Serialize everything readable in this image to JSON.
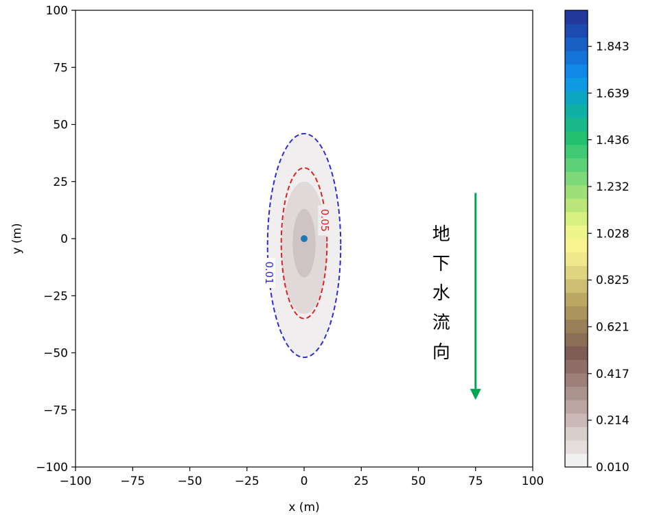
{
  "chart_data": {
    "type": "contour",
    "xlabel": "x (m)",
    "ylabel": "y (m)",
    "xlim": [
      -100,
      100
    ],
    "ylim": [
      -100,
      100
    ],
    "xticks": [
      -100,
      -75,
      -50,
      -25,
      0,
      25,
      50,
      75,
      100
    ],
    "yticks": [
      -100,
      -75,
      -50,
      -25,
      0,
      25,
      50,
      75,
      100
    ],
    "source_point": {
      "x": 0,
      "y": 0,
      "color": "#1f77b4"
    },
    "filled_levels": [
      {
        "x_halfwidth": 16,
        "y_top": 46,
        "y_bottom": -52,
        "color": "#f0eeee"
      },
      {
        "x_halfwidth": 10,
        "y_top": 25,
        "y_bottom": -33,
        "color": "#e0d9d9"
      },
      {
        "x_halfwidth": 5,
        "y_top": 13,
        "y_bottom": -17,
        "color": "#cfc4c4"
      }
    ],
    "contour_lines": [
      {
        "label": "0.01",
        "x_halfwidth": 16,
        "y_top": 46,
        "y_bottom": -52,
        "color": "#2b2bd9"
      },
      {
        "label": "0.05",
        "x_halfwidth": 10,
        "y_top": 31,
        "y_bottom": -35,
        "color": "#dd2222"
      }
    ],
    "colorbar": {
      "ticks": [
        "1.843",
        "1.639",
        "1.436",
        "1.232",
        "1.028",
        "0.825",
        "0.621",
        "0.417",
        "0.214",
        "0.010"
      ],
      "tick_values": [
        1.843,
        1.639,
        1.436,
        1.232,
        1.028,
        0.825,
        0.621,
        0.417,
        0.214,
        0.01
      ],
      "vmin": 0.01,
      "vmax": 2.0,
      "colors": [
        "#f0f0f0",
        "#e4dedd",
        "#d8cfcd",
        "#cab9b6",
        "#bba6a2",
        "#ac938e",
        "#9d807a",
        "#8e6e67",
        "#7f5d55",
        "#8b6e56",
        "#9a8058",
        "#ab955d",
        "#bba865",
        "#cdbe72",
        "#dfd47f",
        "#f0e98c",
        "#f8f48f",
        "#eef58a",
        "#d8f07f",
        "#bbe77a",
        "#9fdf79",
        "#7fd879",
        "#5ed178",
        "#40c974",
        "#23c070",
        "#19b88a",
        "#11b0a5",
        "#0da6c2",
        "#0e9ae3",
        "#1088ea",
        "#1473d6",
        "#185ec3",
        "#1c4aae",
        "#23399b"
      ]
    },
    "annotation": {
      "text_chars": [
        "地",
        "下",
        "水",
        "流",
        "向"
      ],
      "arrow_color": "#00a651",
      "arrow_x": 75,
      "arrow_y_start": 20,
      "arrow_y_end": -70
    }
  }
}
